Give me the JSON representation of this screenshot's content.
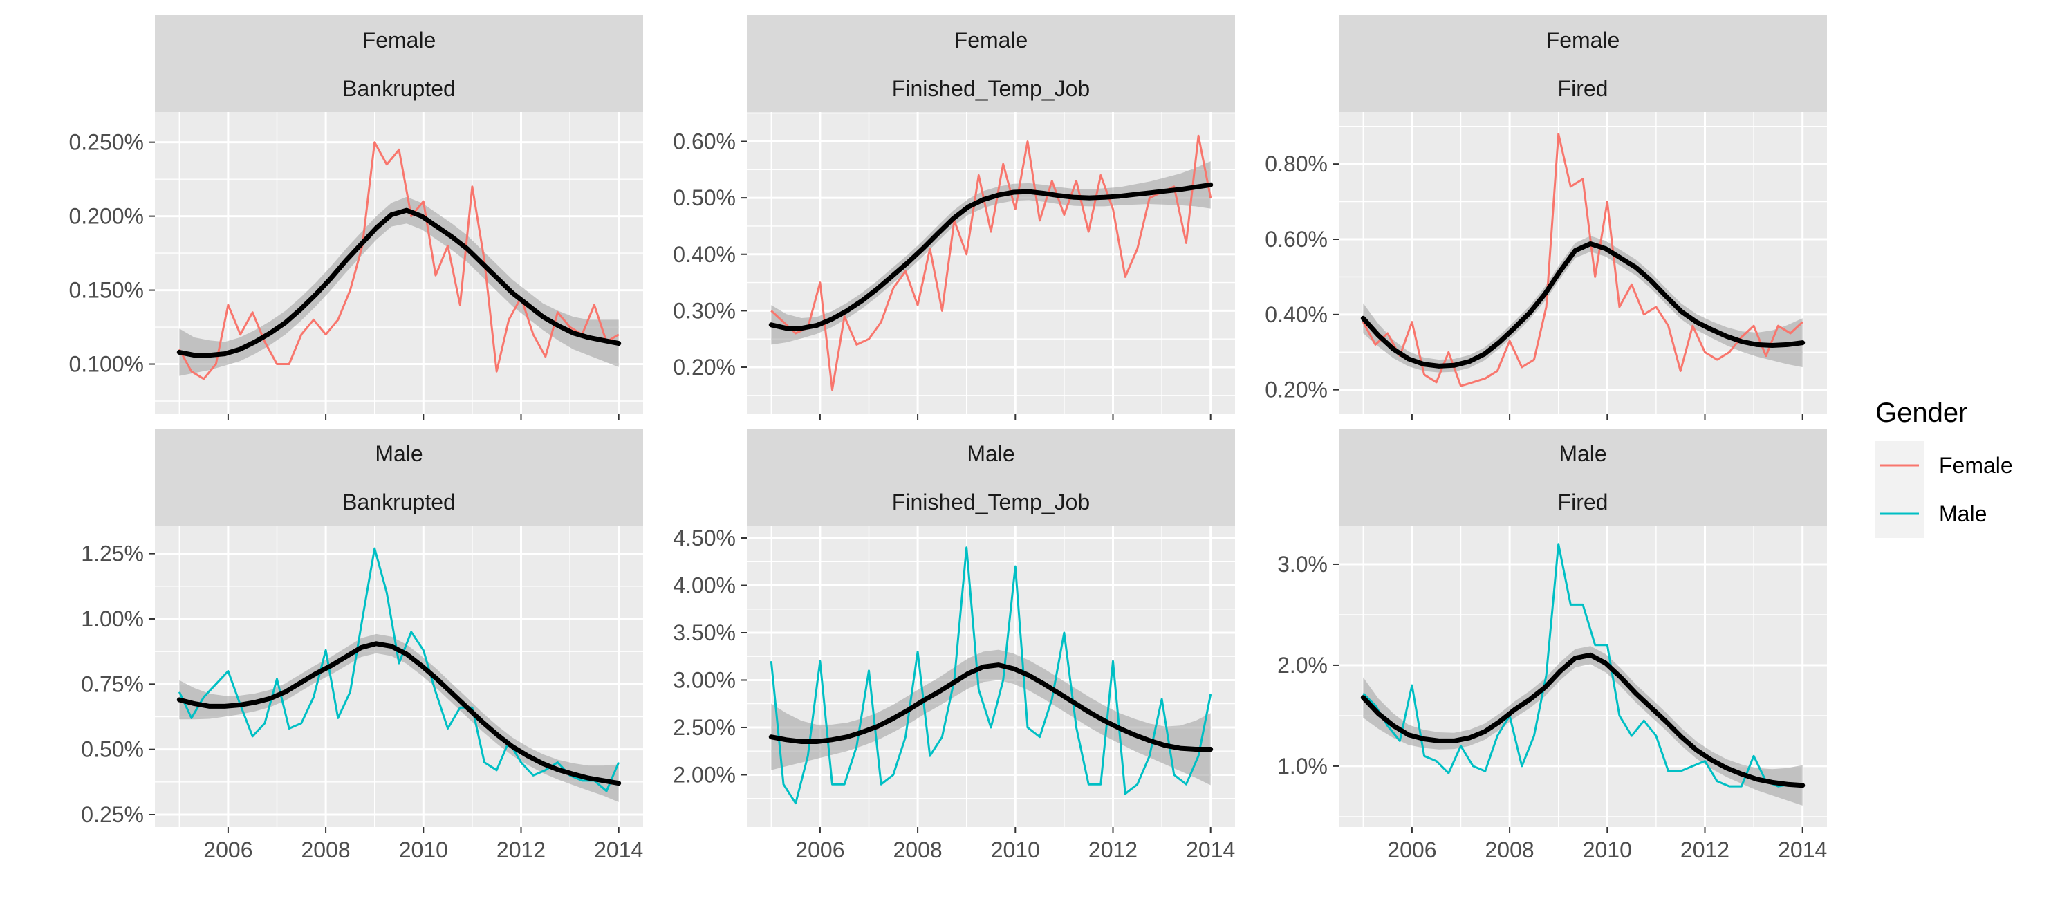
{
  "colors": {
    "female": "#F8766D",
    "male": "#00BFC4",
    "smooth": "#000000",
    "band": "#9E9E9E",
    "panel_bg": "#EBEBEB",
    "strip_bg": "#D9D9D9",
    "grid": "#FFFFFF"
  },
  "legend": {
    "title": "Gender",
    "position": "right",
    "items": [
      {
        "label": "Female",
        "color": "#F8766D"
      },
      {
        "label": "Male",
        "color": "#00BFC4"
      }
    ]
  },
  "chart_data": {
    "type": "line",
    "facet_rows": [
      "Female",
      "Male"
    ],
    "facet_cols": [
      "Bankrupted",
      "Finished_Temp_Job",
      "Fired"
    ],
    "x_ticks": [
      "2006",
      "2008",
      "2010",
      "2012",
      "2014"
    ],
    "xlim": [
      2004.5,
      2014.5
    ],
    "grid": true,
    "panels": [
      {
        "row": "Female",
        "col": "Bankrupted",
        "series": "Female",
        "y_ticks": [
          "0.100%",
          "0.150%",
          "0.200%",
          "0.250%"
        ],
        "y_tick_values": [
          0.1,
          0.15,
          0.2,
          0.25
        ],
        "ylim": [
          0.075,
          0.262
        ],
        "x": [
          2005.0,
          2005.25,
          2005.5,
          2005.75,
          2006.0,
          2006.25,
          2006.5,
          2006.75,
          2007.0,
          2007.25,
          2007.5,
          2007.75,
          2008.0,
          2008.25,
          2008.5,
          2008.75,
          2009.0,
          2009.25,
          2009.5,
          2009.75,
          2010.0,
          2010.25,
          2010.5,
          2010.75,
          2011.0,
          2011.25,
          2011.5,
          2011.75,
          2012.0,
          2012.25,
          2012.5,
          2012.75,
          2013.0,
          2013.25,
          2013.5,
          2013.75,
          2014.0
        ],
        "values": [
          0.11,
          0.095,
          0.09,
          0.1,
          0.14,
          0.12,
          0.135,
          0.115,
          0.1,
          0.1,
          0.12,
          0.13,
          0.12,
          0.13,
          0.15,
          0.18,
          0.25,
          0.235,
          0.245,
          0.2,
          0.21,
          0.16,
          0.18,
          0.14,
          0.22,
          0.17,
          0.095,
          0.13,
          0.145,
          0.12,
          0.105,
          0.135,
          0.125,
          0.12,
          0.14,
          0.115,
          0.12
        ],
        "smooth": [
          0.108,
          0.106,
          0.106,
          0.107,
          0.11,
          0.115,
          0.121,
          0.128,
          0.137,
          0.147,
          0.158,
          0.17,
          0.181,
          0.192,
          0.201,
          0.204,
          0.2,
          0.193,
          0.186,
          0.178,
          0.168,
          0.158,
          0.148,
          0.14,
          0.132,
          0.126,
          0.121,
          0.118,
          0.116,
          0.114
        ],
        "band": [
          0.016,
          0.012,
          0.01,
          0.008,
          0.008,
          0.008,
          0.008,
          0.008,
          0.008,
          0.008,
          0.008,
          0.008,
          0.008,
          0.008,
          0.008,
          0.009,
          0.009,
          0.009,
          0.009,
          0.009,
          0.009,
          0.009,
          0.009,
          0.009,
          0.009,
          0.01,
          0.011,
          0.012,
          0.014,
          0.016
        ]
      },
      {
        "row": "Female",
        "col": "Finished_Temp_Job",
        "series": "Female",
        "y_ticks": [
          "0.20%",
          "0.30%",
          "0.40%",
          "0.50%",
          "0.60%"
        ],
        "y_tick_values": [
          0.2,
          0.3,
          0.4,
          0.5,
          0.6
        ],
        "ylim": [
          0.14,
          0.63
        ],
        "x": [
          2005.0,
          2005.25,
          2005.5,
          2005.75,
          2006.0,
          2006.25,
          2006.5,
          2006.75,
          2007.0,
          2007.25,
          2007.5,
          2007.75,
          2008.0,
          2008.25,
          2008.5,
          2008.75,
          2009.0,
          2009.25,
          2009.5,
          2009.75,
          2010.0,
          2010.25,
          2010.5,
          2010.75,
          2011.0,
          2011.25,
          2011.5,
          2011.75,
          2012.0,
          2012.25,
          2012.5,
          2012.75,
          2013.0,
          2013.25,
          2013.5,
          2013.75,
          2014.0
        ],
        "values": [
          0.3,
          0.28,
          0.26,
          0.27,
          0.35,
          0.16,
          0.29,
          0.24,
          0.25,
          0.28,
          0.34,
          0.37,
          0.31,
          0.41,
          0.3,
          0.46,
          0.4,
          0.54,
          0.44,
          0.56,
          0.48,
          0.6,
          0.46,
          0.53,
          0.47,
          0.53,
          0.44,
          0.54,
          0.48,
          0.36,
          0.41,
          0.5,
          0.51,
          0.52,
          0.42,
          0.61,
          0.5
        ],
        "smooth": [
          0.275,
          0.269,
          0.269,
          0.274,
          0.285,
          0.3,
          0.318,
          0.339,
          0.362,
          0.385,
          0.41,
          0.437,
          0.463,
          0.484,
          0.497,
          0.505,
          0.51,
          0.511,
          0.508,
          0.504,
          0.501,
          0.5,
          0.501,
          0.503,
          0.506,
          0.509,
          0.512,
          0.515,
          0.519,
          0.523
        ],
        "band": [
          0.035,
          0.025,
          0.018,
          0.015,
          0.014,
          0.014,
          0.014,
          0.014,
          0.014,
          0.014,
          0.014,
          0.014,
          0.014,
          0.014,
          0.015,
          0.015,
          0.015,
          0.015,
          0.015,
          0.015,
          0.015,
          0.015,
          0.016,
          0.016,
          0.018,
          0.02,
          0.024,
          0.028,
          0.034,
          0.042
        ]
      },
      {
        "row": "Female",
        "col": "Fired",
        "series": "Female",
        "y_ticks": [
          "0.20%",
          "0.40%",
          "0.60%",
          "0.80%"
        ],
        "y_tick_values": [
          0.2,
          0.4,
          0.6,
          0.8
        ],
        "ylim": [
          0.17,
          0.905
        ],
        "x": [
          2005.0,
          2005.25,
          2005.5,
          2005.75,
          2006.0,
          2006.25,
          2006.5,
          2006.75,
          2007.0,
          2007.25,
          2007.5,
          2007.75,
          2008.0,
          2008.25,
          2008.5,
          2008.75,
          2009.0,
          2009.25,
          2009.5,
          2009.75,
          2010.0,
          2010.25,
          2010.5,
          2010.75,
          2011.0,
          2011.25,
          2011.5,
          2011.75,
          2012.0,
          2012.25,
          2012.5,
          2012.75,
          2013.0,
          2013.25,
          2013.5,
          2013.75,
          2014.0
        ],
        "values": [
          0.38,
          0.32,
          0.35,
          0.29,
          0.38,
          0.24,
          0.22,
          0.3,
          0.21,
          0.22,
          0.23,
          0.25,
          0.33,
          0.26,
          0.28,
          0.42,
          0.88,
          0.74,
          0.76,
          0.5,
          0.7,
          0.42,
          0.48,
          0.4,
          0.42,
          0.37,
          0.25,
          0.37,
          0.3,
          0.28,
          0.3,
          0.34,
          0.37,
          0.29,
          0.37,
          0.35,
          0.38
        ],
        "smooth": [
          0.39,
          0.345,
          0.308,
          0.282,
          0.268,
          0.263,
          0.265,
          0.275,
          0.295,
          0.327,
          0.365,
          0.405,
          0.455,
          0.515,
          0.57,
          0.588,
          0.575,
          0.55,
          0.525,
          0.49,
          0.448,
          0.408,
          0.38,
          0.36,
          0.342,
          0.328,
          0.32,
          0.318,
          0.32,
          0.325
        ],
        "band": [
          0.04,
          0.03,
          0.024,
          0.02,
          0.018,
          0.017,
          0.017,
          0.017,
          0.017,
          0.017,
          0.018,
          0.018,
          0.019,
          0.02,
          0.02,
          0.021,
          0.021,
          0.021,
          0.021,
          0.021,
          0.021,
          0.021,
          0.021,
          0.022,
          0.024,
          0.027,
          0.032,
          0.04,
          0.052,
          0.065
        ]
      },
      {
        "row": "Male",
        "col": "Bankrupted",
        "series": "Male",
        "y_ticks": [
          "0.25%",
          "0.50%",
          "0.75%",
          "1.00%",
          "1.25%"
        ],
        "y_tick_values": [
          0.25,
          0.5,
          0.75,
          1.0,
          1.25
        ],
        "ylim": [
          0.25,
          1.31
        ],
        "x": [
          2005.0,
          2005.25,
          2005.5,
          2005.75,
          2006.0,
          2006.25,
          2006.5,
          2006.75,
          2007.0,
          2007.25,
          2007.5,
          2007.75,
          2008.0,
          2008.25,
          2008.5,
          2008.75,
          2009.0,
          2009.25,
          2009.5,
          2009.75,
          2010.0,
          2010.25,
          2010.5,
          2010.75,
          2011.0,
          2011.25,
          2011.5,
          2011.75,
          2012.0,
          2012.25,
          2012.5,
          2012.75,
          2013.0,
          2013.25,
          2013.5,
          2013.75,
          2014.0
        ],
        "values": [
          0.72,
          0.62,
          0.7,
          0.75,
          0.8,
          0.67,
          0.55,
          0.6,
          0.77,
          0.58,
          0.6,
          0.7,
          0.88,
          0.62,
          0.72,
          1.0,
          1.27,
          1.1,
          0.83,
          0.95,
          0.88,
          0.72,
          0.58,
          0.66,
          0.66,
          0.45,
          0.42,
          0.53,
          0.45,
          0.4,
          0.42,
          0.45,
          0.4,
          0.38,
          0.38,
          0.34,
          0.45
        ],
        "smooth": [
          0.69,
          0.675,
          0.665,
          0.665,
          0.67,
          0.68,
          0.695,
          0.72,
          0.755,
          0.79,
          0.82,
          0.855,
          0.89,
          0.905,
          0.895,
          0.865,
          0.82,
          0.77,
          0.715,
          0.66,
          0.605,
          0.555,
          0.51,
          0.475,
          0.445,
          0.422,
          0.405,
          0.39,
          0.38,
          0.37
        ],
        "band": [
          0.075,
          0.06,
          0.048,
          0.04,
          0.036,
          0.034,
          0.033,
          0.033,
          0.033,
          0.033,
          0.034,
          0.035,
          0.036,
          0.037,
          0.037,
          0.037,
          0.037,
          0.037,
          0.037,
          0.037,
          0.036,
          0.035,
          0.035,
          0.035,
          0.036,
          0.038,
          0.042,
          0.048,
          0.058,
          0.072
        ]
      },
      {
        "row": "Male",
        "col": "Finished_Temp_Job",
        "series": "Male",
        "y_ticks": [
          "2.00%",
          "2.50%",
          "3.00%",
          "3.50%",
          "4.00%",
          "4.50%"
        ],
        "y_tick_values": [
          2.0,
          2.5,
          3.0,
          3.5,
          4.0,
          4.5
        ],
        "ylim": [
          1.58,
          4.5
        ],
        "x": [
          2005.0,
          2005.25,
          2005.5,
          2005.75,
          2006.0,
          2006.25,
          2006.5,
          2006.75,
          2007.0,
          2007.25,
          2007.5,
          2007.75,
          2008.0,
          2008.25,
          2008.5,
          2008.75,
          2009.0,
          2009.25,
          2009.5,
          2009.75,
          2010.0,
          2010.25,
          2010.5,
          2010.75,
          2011.0,
          2011.25,
          2011.5,
          2011.75,
          2012.0,
          2012.25,
          2012.5,
          2012.75,
          2013.0,
          2013.25,
          2013.5,
          2013.75,
          2014.0
        ],
        "values": [
          3.2,
          1.9,
          1.7,
          2.2,
          3.2,
          1.9,
          1.9,
          2.3,
          3.1,
          1.9,
          2.0,
          2.4,
          3.3,
          2.2,
          2.4,
          3.0,
          4.4,
          2.9,
          2.5,
          3.0,
          4.2,
          2.5,
          2.4,
          2.8,
          3.5,
          2.5,
          1.9,
          1.9,
          3.2,
          1.8,
          1.9,
          2.2,
          2.8,
          2.0,
          1.9,
          2.2,
          2.85
        ],
        "smooth": [
          2.4,
          2.37,
          2.35,
          2.35,
          2.37,
          2.4,
          2.45,
          2.51,
          2.59,
          2.68,
          2.78,
          2.87,
          2.97,
          3.07,
          3.14,
          3.16,
          3.12,
          3.05,
          2.96,
          2.86,
          2.76,
          2.66,
          2.57,
          2.49,
          2.42,
          2.36,
          2.31,
          2.28,
          2.27,
          2.27
        ],
        "band": [
          0.35,
          0.28,
          0.22,
          0.18,
          0.16,
          0.15,
          0.145,
          0.145,
          0.145,
          0.15,
          0.15,
          0.15,
          0.155,
          0.16,
          0.16,
          0.16,
          0.16,
          0.16,
          0.16,
          0.16,
          0.16,
          0.16,
          0.16,
          0.16,
          0.17,
          0.18,
          0.2,
          0.24,
          0.3,
          0.38
        ]
      },
      {
        "row": "Male",
        "col": "Fired",
        "series": "Male",
        "y_ticks": [
          "1.0%",
          "2.0%",
          "3.0%"
        ],
        "y_tick_values": [
          1.0,
          2.0,
          3.0
        ],
        "ylim": [
          0.52,
          3.26
        ],
        "x": [
          2005.0,
          2005.25,
          2005.5,
          2005.75,
          2006.0,
          2006.25,
          2006.5,
          2006.75,
          2007.0,
          2007.25,
          2007.5,
          2007.75,
          2008.0,
          2008.25,
          2008.5,
          2008.75,
          2009.0,
          2009.25,
          2009.5,
          2009.75,
          2010.0,
          2010.25,
          2010.5,
          2010.75,
          2011.0,
          2011.25,
          2011.5,
          2011.75,
          2012.0,
          2012.25,
          2012.5,
          2012.75,
          2013.0,
          2013.25,
          2013.5,
          2013.75,
          2014.0
        ],
        "values": [
          1.72,
          1.6,
          1.4,
          1.25,
          1.8,
          1.1,
          1.05,
          0.93,
          1.2,
          1.0,
          0.95,
          1.3,
          1.5,
          1.0,
          1.3,
          1.9,
          3.2,
          2.6,
          2.6,
          2.2,
          2.2,
          1.5,
          1.3,
          1.45,
          1.3,
          0.95,
          0.95,
          1.0,
          1.05,
          0.85,
          0.8,
          0.8,
          1.1,
          0.85,
          0.8,
          0.82,
          0.82
        ],
        "smooth": [
          1.68,
          1.52,
          1.4,
          1.31,
          1.27,
          1.25,
          1.25,
          1.28,
          1.34,
          1.44,
          1.56,
          1.66,
          1.78,
          1.94,
          2.07,
          2.1,
          2.02,
          1.88,
          1.72,
          1.58,
          1.44,
          1.29,
          1.16,
          1.06,
          0.98,
          0.92,
          0.87,
          0.84,
          0.82,
          0.81
        ],
        "band": [
          0.2,
          0.15,
          0.12,
          0.1,
          0.09,
          0.085,
          0.08,
          0.08,
          0.08,
          0.08,
          0.082,
          0.085,
          0.088,
          0.09,
          0.09,
          0.09,
          0.09,
          0.09,
          0.09,
          0.09,
          0.088,
          0.087,
          0.086,
          0.086,
          0.088,
          0.095,
          0.11,
          0.13,
          0.16,
          0.2
        ]
      }
    ]
  }
}
